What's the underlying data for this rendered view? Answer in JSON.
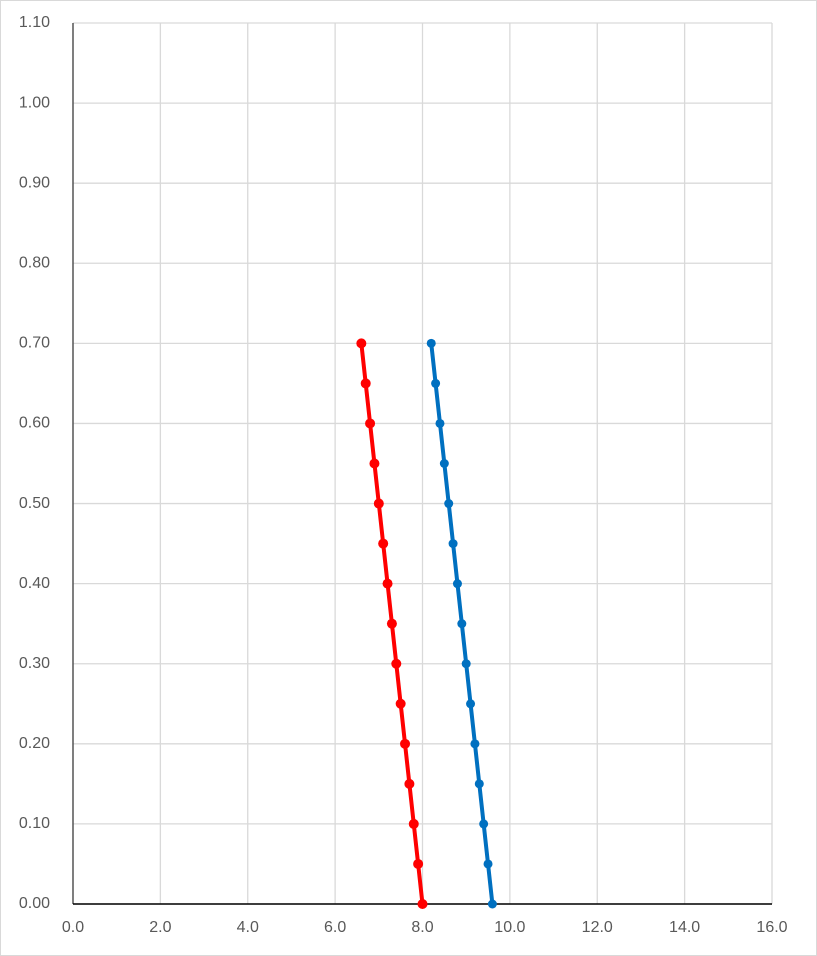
{
  "chart_data": {
    "type": "line",
    "xlim": [
      0,
      16
    ],
    "xticks": [
      {
        "value": 0,
        "label": "0.0"
      },
      {
        "value": 2,
        "label": "2.0"
      },
      {
        "value": 4,
        "label": "4.0"
      },
      {
        "value": 6,
        "label": "6.0"
      },
      {
        "value": 8,
        "label": "8.0"
      },
      {
        "value": 10,
        "label": "10.0"
      },
      {
        "value": 12,
        "label": "12.0"
      },
      {
        "value": 14,
        "label": "14.0"
      },
      {
        "value": 16,
        "label": "16.0"
      }
    ],
    "ylim": [
      0,
      1.1
    ],
    "yticks": [
      {
        "value": 0,
        "label": "0.00"
      },
      {
        "value": 0.1,
        "label": "0.10"
      },
      {
        "value": 0.2,
        "label": "0.20"
      },
      {
        "value": 0.3,
        "label": "0.30"
      },
      {
        "value": 0.4,
        "label": "0.40"
      },
      {
        "value": 0.5,
        "label": "0.50"
      },
      {
        "value": 0.6,
        "label": "0.60"
      },
      {
        "value": 0.7,
        "label": "0.70"
      },
      {
        "value": 0.8,
        "label": "0.80"
      },
      {
        "value": 0.9,
        "label": "0.90"
      },
      {
        "value": 1.0,
        "label": "1.00"
      },
      {
        "value": 1.1,
        "label": "1.10"
      }
    ],
    "grid": true,
    "series": [
      {
        "color": "#ff0000",
        "x": [
          8.0,
          7.9,
          7.8,
          7.7,
          7.6,
          7.5,
          7.4,
          7.3,
          7.2,
          7.1,
          7.0,
          6.9,
          6.8,
          6.7,
          6.6
        ],
        "values": [
          0,
          0.05,
          0.1,
          0.15,
          0.2,
          0.25,
          0.3,
          0.35,
          0.4,
          0.45,
          0.5,
          0.55,
          0.6,
          0.65,
          0.7
        ]
      },
      {
        "color": "#0070c0",
        "x": [
          9.6,
          9.5,
          9.4,
          9.3,
          9.2,
          9.1,
          9.0,
          8.9,
          8.8,
          8.7,
          8.6,
          8.5,
          8.4,
          8.3,
          8.2
        ],
        "values": [
          0,
          0.05,
          0.1,
          0.15,
          0.2,
          0.25,
          0.3,
          0.35,
          0.4,
          0.45,
          0.5,
          0.55,
          0.6,
          0.65,
          0.7
        ]
      }
    ]
  }
}
